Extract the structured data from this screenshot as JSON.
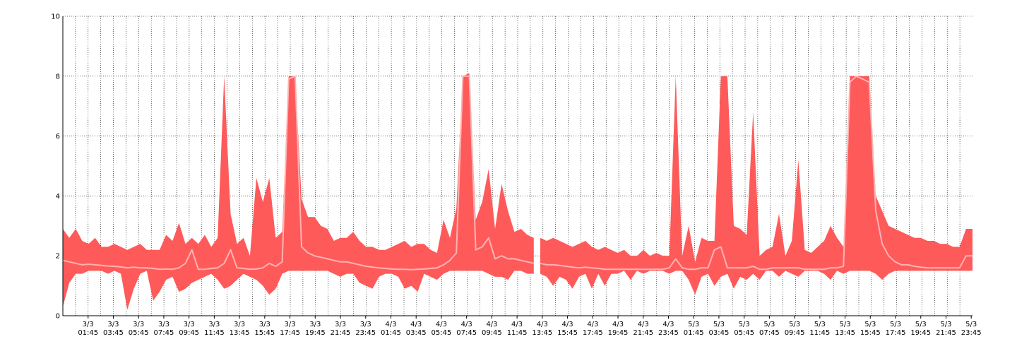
{
  "chart_data": {
    "type": "area",
    "title": "",
    "xlabel": "",
    "ylabel": "",
    "ylim": [
      0,
      10
    ],
    "y_ticks": [
      "0",
      "2",
      "4",
      "6",
      "8",
      "10"
    ],
    "x_ticks": [
      [
        "3/3",
        "01:45"
      ],
      [
        "3/3",
        "03:45"
      ],
      [
        "3/3",
        "05:45"
      ],
      [
        "3/3",
        "07:45"
      ],
      [
        "3/3",
        "09:45"
      ],
      [
        "3/3",
        "11:45"
      ],
      [
        "3/3",
        "13:45"
      ],
      [
        "3/3",
        "15:45"
      ],
      [
        "3/3",
        "17:45"
      ],
      [
        "3/3",
        "19:45"
      ],
      [
        "3/3",
        "21:45"
      ],
      [
        "3/3",
        "23:45"
      ],
      [
        "4/3",
        "01:45"
      ],
      [
        "4/3",
        "03:45"
      ],
      [
        "4/3",
        "05:45"
      ],
      [
        "4/3",
        "07:45"
      ],
      [
        "4/3",
        "09:45"
      ],
      [
        "4/3",
        "11:45"
      ],
      [
        "4/3",
        "13:45"
      ],
      [
        "4/3",
        "15:45"
      ],
      [
        "4/3",
        "17:45"
      ],
      [
        "4/3",
        "19:45"
      ],
      [
        "4/3",
        "21:45"
      ],
      [
        "4/3",
        "23:45"
      ],
      [
        "5/3",
        "01:45"
      ],
      [
        "5/3",
        "03:45"
      ],
      [
        "5/3",
        "05:45"
      ],
      [
        "5/3",
        "07:45"
      ],
      [
        "5/3",
        "09:45"
      ],
      [
        "5/3",
        "11:45"
      ],
      [
        "5/3",
        "13:45"
      ],
      [
        "5/3",
        "15:45"
      ],
      [
        "5/3",
        "17:45"
      ],
      [
        "5/3",
        "19:45"
      ],
      [
        "5/3",
        "21:45"
      ],
      [
        "5/3",
        "23:45"
      ]
    ],
    "grid": true,
    "legend": "none",
    "colors": {
      "band": "#ff5a5a",
      "line": "#ffb3b3"
    },
    "series": [
      {
        "x": [
          0,
          1,
          2,
          3,
          4,
          5,
          6,
          7,
          8,
          9,
          10,
          11,
          12,
          13,
          14,
          15,
          16,
          17,
          18,
          19,
          20,
          21,
          22,
          23,
          24,
          25,
          26,
          27,
          28,
          29,
          30,
          31,
          32,
          33,
          34,
          35,
          36,
          37,
          38,
          39,
          40,
          41,
          42,
          43,
          44,
          45,
          46,
          47,
          48,
          49,
          50,
          51,
          52,
          53,
          54,
          55,
          56,
          57,
          58,
          59,
          60,
          61,
          62,
          63,
          64,
          65,
          66,
          67,
          68,
          69,
          70,
          71,
          72,
          73
        ],
        "max": [
          2.9,
          2.6,
          2.9,
          2.5,
          2.4,
          2.6,
          2.3,
          2.3,
          2.4,
          2.3,
          2.2,
          2.3,
          2.4,
          2.2,
          2.2,
          2.2,
          2.7,
          2.5,
          3.1,
          2.4,
          2.6,
          2.4,
          2.7,
          2.3,
          2.6,
          8.0,
          3.4,
          2.4,
          2.6,
          2.0,
          4.6,
          3.8,
          4.6,
          2.6,
          2.8,
          8.0,
          8.0,
          3.9,
          3.3,
          3.3,
          3.0,
          2.9,
          2.5,
          2.6,
          2.6,
          2.8,
          2.5,
          2.3,
          2.3,
          2.2,
          2.2,
          2.3,
          2.4,
          2.5,
          2.3,
          2.4,
          2.4,
          2.2,
          2.1,
          3.2,
          2.6,
          3.6,
          8.0,
          8.1,
          3.2,
          3.8,
          4.9,
          2.9,
          4.4,
          3.5,
          2.8,
          2.9,
          2.7,
          2.6
        ],
        "avg": [
          1.85,
          1.8,
          1.75,
          1.7,
          1.72,
          1.7,
          1.68,
          1.66,
          1.65,
          1.63,
          1.6,
          1.62,
          1.6,
          1.6,
          1.58,
          1.55,
          1.56,
          1.55,
          1.6,
          1.75,
          2.2,
          1.55,
          1.55,
          1.58,
          1.6,
          1.75,
          2.2,
          1.6,
          1.58,
          1.55,
          1.56,
          1.6,
          1.75,
          1.65,
          1.8,
          7.9,
          8.0,
          2.3,
          2.1,
          2.0,
          1.95,
          1.9,
          1.85,
          1.8,
          1.8,
          1.75,
          1.7,
          1.65,
          1.62,
          1.6,
          1.58,
          1.56,
          1.55,
          1.55,
          1.54,
          1.55,
          1.56,
          1.58,
          1.6,
          1.7,
          1.85,
          2.1,
          8.0,
          8.0,
          2.2,
          2.3,
          2.6,
          1.9,
          2.0,
          1.9,
          1.9,
          1.85,
          1.8,
          1.75
        ],
        "min": [
          0.3,
          1.1,
          1.4,
          1.4,
          1.5,
          1.5,
          1.5,
          1.4,
          1.5,
          1.4,
          0.2,
          0.9,
          1.4,
          1.5,
          0.5,
          0.8,
          1.2,
          1.3,
          0.8,
          0.9,
          1.1,
          1.2,
          1.3,
          1.4,
          1.2,
          0.9,
          1.0,
          1.2,
          1.4,
          1.3,
          1.2,
          1.0,
          0.7,
          0.9,
          1.4,
          1.5,
          1.5,
          1.5,
          1.5,
          1.5,
          1.5,
          1.5,
          1.4,
          1.3,
          1.4,
          1.4,
          1.1,
          1.0,
          0.9,
          1.3,
          1.4,
          1.4,
          1.3,
          0.9,
          1.0,
          0.8,
          1.4,
          1.3,
          1.2,
          1.4,
          1.5,
          1.5,
          1.5,
          1.5,
          1.5,
          1.5,
          1.4,
          1.3,
          1.3,
          1.2,
          1.5,
          1.5,
          1.4,
          1.4
        ]
      },
      {
        "x": [
          74,
          75,
          76,
          77,
          78,
          79,
          80,
          81,
          82,
          83,
          84,
          85,
          86,
          87,
          88,
          89,
          90,
          91,
          92,
          93,
          94,
          95,
          96,
          97,
          98,
          99,
          100,
          101,
          102,
          103,
          104,
          105,
          106,
          107,
          108,
          109,
          110,
          111,
          112,
          113,
          114,
          115,
          116,
          117,
          118,
          119,
          120,
          121,
          122,
          123,
          124,
          125,
          126,
          127,
          128,
          129,
          130,
          131,
          132,
          133,
          134,
          135,
          136,
          137,
          138,
          139,
          140,
          141
        ],
        "max": [
          2.6,
          2.5,
          2.6,
          2.5,
          2.4,
          2.3,
          2.4,
          2.5,
          2.3,
          2.2,
          2.3,
          2.2,
          2.1,
          2.2,
          2.0,
          2.0,
          2.2,
          2.0,
          2.1,
          2.0,
          2.0,
          8.0,
          2.0,
          3.0,
          1.8,
          2.6,
          2.5,
          2.5,
          8.0,
          8.0,
          3.0,
          2.9,
          2.7,
          6.8,
          2.0,
          2.2,
          2.3,
          3.4,
          2.0,
          2.5,
          5.2,
          2.2,
          2.1,
          2.3,
          2.5,
          3.0,
          2.6,
          2.3,
          8.0,
          8.0,
          8.0,
          8.0,
          4.0,
          3.5,
          3.0,
          2.9,
          2.8,
          2.7,
          2.6,
          2.6,
          2.5,
          2.5,
          2.4,
          2.4,
          2.3,
          2.3,
          2.9,
          2.9
        ],
        "avg": [
          1.75,
          1.7,
          1.7,
          1.68,
          1.65,
          1.62,
          1.6,
          1.62,
          1.6,
          1.58,
          1.55,
          1.55,
          1.55,
          1.55,
          1.55,
          1.55,
          1.55,
          1.55,
          1.55,
          1.55,
          1.6,
          1.9,
          1.6,
          1.55,
          1.55,
          1.6,
          1.6,
          2.2,
          2.3,
          1.6,
          1.6,
          1.6,
          1.6,
          1.65,
          1.55,
          1.55,
          1.6,
          1.6,
          1.6,
          1.6,
          1.6,
          1.55,
          1.55,
          1.55,
          1.55,
          1.6,
          1.6,
          1.65,
          7.8,
          8.0,
          7.9,
          7.8,
          3.5,
          2.4,
          2.0,
          1.8,
          1.7,
          1.7,
          1.65,
          1.62,
          1.6,
          1.6,
          1.6,
          1.6,
          1.6,
          1.6,
          2.0,
          2.0
        ],
        "min": [
          1.4,
          1.3,
          1.0,
          1.3,
          1.2,
          0.9,
          1.3,
          1.4,
          0.9,
          1.4,
          1.0,
          1.4,
          1.4,
          1.5,
          1.2,
          1.5,
          1.4,
          1.5,
          1.5,
          1.5,
          1.4,
          1.5,
          1.5,
          1.2,
          0.7,
          1.3,
          1.4,
          1.0,
          1.3,
          1.4,
          0.9,
          1.3,
          1.2,
          1.4,
          1.2,
          1.5,
          1.5,
          1.3,
          1.5,
          1.4,
          1.3,
          1.5,
          1.5,
          1.5,
          1.4,
          1.2,
          1.5,
          1.4,
          1.5,
          1.5,
          1.5,
          1.5,
          1.4,
          1.2,
          1.4,
          1.5,
          1.5,
          1.5,
          1.5,
          1.5,
          1.5,
          1.5,
          1.5,
          1.5,
          1.5,
          1.5,
          1.5,
          1.5
        ]
      }
    ]
  }
}
